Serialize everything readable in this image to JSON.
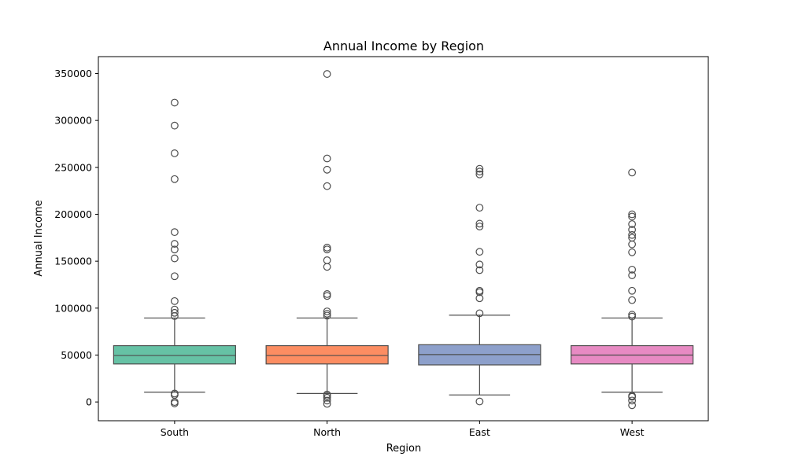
{
  "chart_data": {
    "type": "box",
    "title": "Annual Income by Region",
    "xlabel": "Region",
    "ylabel": "Annual Income",
    "ylim": [
      -20000,
      368000
    ],
    "yticks": [
      0,
      50000,
      100000,
      150000,
      200000,
      250000,
      300000,
      350000
    ],
    "ytick_labels": [
      "0",
      "50000",
      "100000",
      "150000",
      "200000",
      "250000",
      "300000",
      "350000"
    ],
    "categories": [
      "South",
      "North",
      "East",
      "West"
    ],
    "grid": false,
    "legend": "none",
    "boxes": [
      {
        "category": "South",
        "color": "#66c2a5",
        "whisker_low": 10500,
        "q1": 40500,
        "median": 49500,
        "q3": 60000,
        "whisker_high": 89500,
        "outliers": [
          -1500,
          0,
          7500,
          9000,
          91500,
          95000,
          98500,
          107500,
          134000,
          153000,
          162500,
          168500,
          181000,
          237500,
          265000,
          294500,
          319000
        ]
      },
      {
        "category": "North",
        "color": "#fc8d62",
        "whisker_low": 9000,
        "q1": 40500,
        "median": 49500,
        "q3": 60000,
        "whisker_high": 89500,
        "outliers": [
          -2000,
          1500,
          4500,
          6500,
          8000,
          92000,
          94000,
          96500,
          113000,
          115000,
          144000,
          151000,
          162500,
          164500,
          230000,
          247500,
          259500,
          349500
        ]
      },
      {
        "category": "East",
        "color": "#8da0cb",
        "whisker_low": 7500,
        "q1": 39500,
        "median": 50500,
        "q3": 61000,
        "whisker_high": 92500,
        "outliers": [
          500,
          94500,
          110500,
          117000,
          118500,
          140500,
          146500,
          160000,
          187000,
          190000,
          207000,
          242500,
          245500,
          248500
        ]
      },
      {
        "category": "West",
        "color": "#e78ac3",
        "whisker_low": 10500,
        "q1": 40500,
        "median": 50000,
        "q3": 60000,
        "whisker_high": 89500,
        "outliers": [
          -3500,
          1500,
          5500,
          6500,
          91000,
          93000,
          108500,
          118500,
          135000,
          141000,
          159500,
          168000,
          175000,
          178000,
          183500,
          189500,
          197500,
          200000,
          244500
        ]
      }
    ]
  }
}
